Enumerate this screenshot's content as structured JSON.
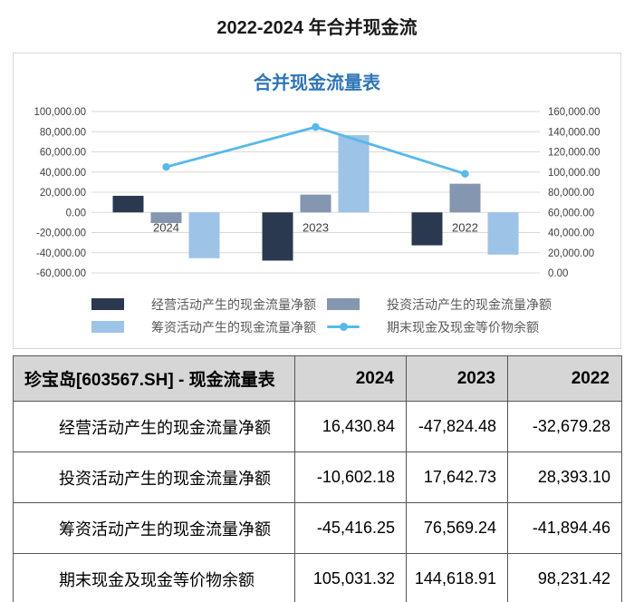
{
  "page": {
    "title": "2022-2024 年合并现金流"
  },
  "colors": {
    "title_blue": "#2e75b6",
    "grid": "#d9d9d9",
    "axis_text": "#404040",
    "legend_text": "#595959",
    "table_border": "#555555",
    "header_bg": "#d6d6d6"
  },
  "chart_data": {
    "type": "combo-bar-line",
    "title": "合并现金流量表",
    "categories": [
      "2024",
      "2023",
      "2022"
    ],
    "series": [
      {
        "name": "经营活动产生的现金流量净额",
        "type": "bar",
        "axis": "left",
        "color": "#2a3950",
        "values": [
          16430.84,
          -47824.48,
          -32679.28
        ]
      },
      {
        "name": "投资活动产生的现金流量净额",
        "type": "bar",
        "axis": "left",
        "color": "#8496b0",
        "values": [
          -10602.18,
          17642.73,
          28393.1
        ]
      },
      {
        "name": "筹资活动产生的现金流量净额",
        "type": "bar",
        "axis": "left",
        "color": "#9dc3e6",
        "values": [
          -45416.25,
          76569.24,
          -41894.46
        ]
      },
      {
        "name": "期末现金及现金等价物余额",
        "type": "line",
        "axis": "right",
        "color": "#56b9ea",
        "values": [
          105031.32,
          144618.91,
          98231.42
        ]
      }
    ],
    "left_axis": {
      "min": -60000,
      "max": 100000,
      "step": 20000,
      "ticks": [
        "100,000.00",
        "80,000.00",
        "60,000.00",
        "40,000.00",
        "20,000.00",
        "0.00",
        "-20,000.00",
        "-40,000.00",
        "-60,000.00"
      ]
    },
    "right_axis": {
      "min": 0,
      "max": 160000,
      "step": 20000,
      "ticks": [
        "160,000.00",
        "140,000.00",
        "120,000.00",
        "100,000.00",
        "80,000.00",
        "60,000.00",
        "40,000.00",
        "20,000.00",
        "0.00"
      ]
    },
    "grid": true,
    "legend_position": "bottom"
  },
  "table": {
    "header": {
      "title": "珍宝岛[603567.SH] - 现金流量表",
      "years": [
        "2024",
        "2023",
        "2022"
      ]
    },
    "rows": [
      {
        "label": "经营活动产生的现金流量净额",
        "values": [
          "16,430.84",
          "-47,824.48",
          "-32,679.28"
        ]
      },
      {
        "label": "投资活动产生的现金流量净额",
        "values": [
          "-10,602.18",
          "17,642.73",
          "28,393.10"
        ]
      },
      {
        "label": "筹资活动产生的现金流量净额",
        "values": [
          "-45,416.25",
          "76,569.24",
          "-41,894.46"
        ]
      },
      {
        "label": "期末现金及现金等价物余额",
        "values": [
          "105,031.32",
          "144,618.91",
          "98,231.42"
        ]
      }
    ]
  }
}
